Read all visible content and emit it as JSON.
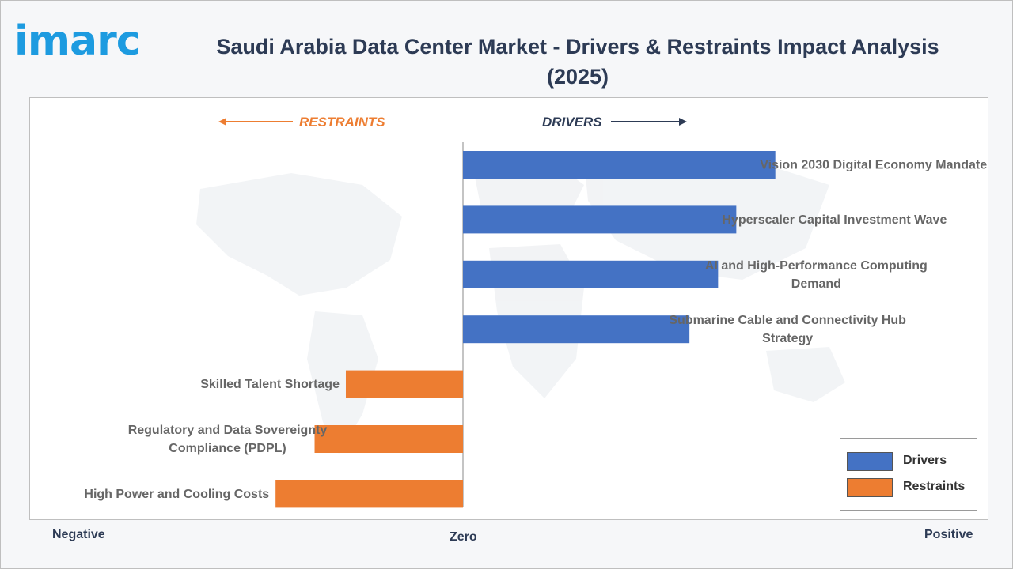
{
  "brand": {
    "logo_text": "imarc",
    "logo_color": "#1d9be0"
  },
  "header": {
    "title": "Saudi Arabia Data Center Market - Drivers & Restraints Impact Analysis (2025)"
  },
  "axis": {
    "left_label": "Negative",
    "center_label": "Zero",
    "right_label": "Positive"
  },
  "legend": {
    "items": [
      {
        "label": "Drivers",
        "color": "#4472c4"
      },
      {
        "label": "Restraints",
        "color": "#ed7d31"
      }
    ]
  },
  "chart_data": {
    "type": "bar",
    "orientation": "horizontal",
    "direction_labels": {
      "restraints": "RESTRAINTS",
      "drivers": "DRIVERS"
    },
    "colors": {
      "drivers": "#4472c4",
      "restraints": "#ed7d31"
    },
    "xlim": [
      -8.3,
      8.3
    ],
    "bars": [
      {
        "label": "Vision 2030 Digital Economy Mandate",
        "value": 6.0,
        "group": "drivers"
      },
      {
        "label": "Hyperscaler Capital Investment Wave",
        "value": 5.25,
        "group": "drivers"
      },
      {
        "label": "AI and High-Performance Computing Demand",
        "value": 4.9,
        "group": "drivers"
      },
      {
        "label": "Submarine Cable and Connectivity Hub Strategy",
        "value": 4.35,
        "group": "drivers"
      },
      {
        "label": "Skilled Talent Shortage",
        "value": -2.25,
        "group": "restraints"
      },
      {
        "label": "Regulatory and Data Sovereignty Compliance (PDPL)",
        "value": -2.85,
        "group": "restraints"
      },
      {
        "label": "High Power and Cooling Costs",
        "value": -3.6,
        "group": "restraints"
      }
    ]
  }
}
